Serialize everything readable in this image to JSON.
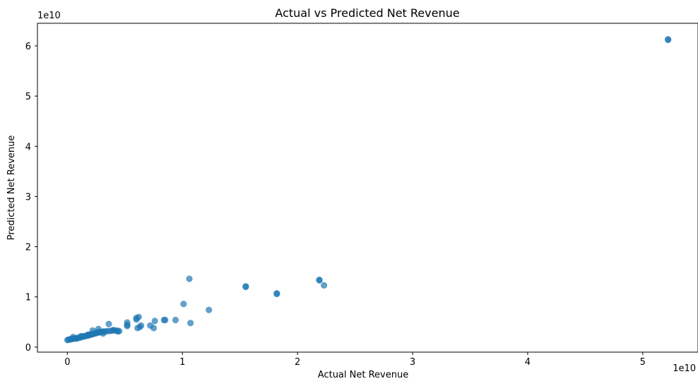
{
  "chart_data": {
    "type": "scatter",
    "title": "Actual vs Predicted Net Revenue",
    "xlabel": "Actual Net Revenue",
    "ylabel": "Predicted Net Revenue",
    "x_offset_label": "1e10",
    "y_offset_label": "1e10",
    "xlim": [
      -0.26,
      5.48
    ],
    "ylim": [
      -0.1,
      6.45
    ],
    "xticks": [
      0,
      1,
      2,
      3,
      4,
      5
    ],
    "yticks": [
      0,
      1,
      2,
      3,
      4,
      5,
      6
    ],
    "xtick_labels": [
      "0",
      "1",
      "2",
      "3",
      "4",
      "5"
    ],
    "ytick_labels": [
      "0",
      "1",
      "2",
      "3",
      "4",
      "5",
      "6"
    ],
    "grid": false,
    "marker_color": "#1f77b4",
    "marker_alpha": 0.7,
    "series": [
      {
        "x": [
          0.0,
          0.01,
          0.02,
          0.03,
          0.04,
          0.05,
          0.06,
          0.07,
          0.08,
          0.09,
          0.1,
          0.11,
          0.12,
          0.13,
          0.14,
          0.15,
          0.16,
          0.17,
          0.18,
          0.19,
          0.2,
          0.21,
          0.22,
          0.23,
          0.24,
          0.25,
          0.26,
          0.27,
          0.28,
          0.29,
          0.3,
          0.31,
          0.32,
          0.33,
          0.35,
          0.37,
          0.39,
          0.41,
          0.43,
          0.45,
          0.05,
          0.08,
          0.12,
          0.18,
          0.22,
          0.27,
          0.31,
          0.36,
          0.4,
          0.44,
          0.52,
          0.52,
          0.52,
          0.6,
          0.6,
          0.61,
          0.62,
          0.63,
          0.64,
          0.72,
          0.75,
          0.76,
          0.84,
          0.85,
          0.94,
          1.01,
          1.06,
          1.07,
          1.23,
          1.55,
          1.55,
          1.82,
          1.82,
          2.19,
          2.19,
          2.23,
          5.22,
          5.22
        ],
        "y": [
          0.14,
          0.15,
          0.15,
          0.16,
          0.16,
          0.17,
          0.17,
          0.17,
          0.18,
          0.18,
          0.19,
          0.19,
          0.2,
          0.21,
          0.21,
          0.22,
          0.22,
          0.23,
          0.23,
          0.24,
          0.25,
          0.25,
          0.26,
          0.27,
          0.27,
          0.28,
          0.29,
          0.29,
          0.3,
          0.3,
          0.3,
          0.31,
          0.31,
          0.31,
          0.32,
          0.32,
          0.33,
          0.33,
          0.33,
          0.32,
          0.2,
          0.17,
          0.22,
          0.25,
          0.33,
          0.36,
          0.27,
          0.46,
          0.34,
          0.31,
          0.49,
          0.44,
          0.42,
          0.58,
          0.55,
          0.38,
          0.6,
          0.4,
          0.43,
          0.43,
          0.38,
          0.52,
          0.54,
          0.54,
          0.54,
          0.86,
          1.36,
          0.48,
          0.74,
          1.21,
          1.2,
          1.07,
          1.06,
          1.34,
          1.33,
          1.23,
          6.12,
          6.13
        ]
      }
    ]
  }
}
